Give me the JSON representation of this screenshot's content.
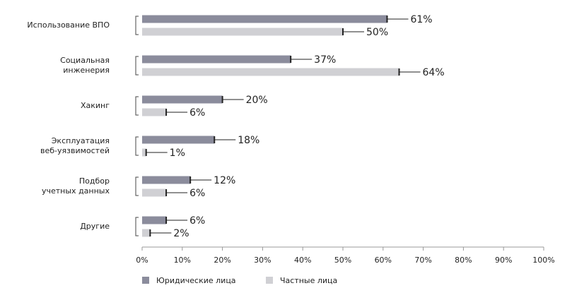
{
  "chart_data": {
    "type": "bar",
    "orientation": "horizontal",
    "categories": [
      "Использование ВПО",
      "Социальная\nинженерия",
      "Хакинг",
      "Эксплуатация\nвеб-уязвимостей",
      "Подбор\nучетных данных",
      "Другие"
    ],
    "series": [
      {
        "name": "Юридические лица",
        "color": "#8b8c9c",
        "values": [
          61,
          37,
          20,
          18,
          12,
          6
        ],
        "value_labels": [
          "61%",
          "37%",
          "20%",
          "18%",
          "12%",
          "6%"
        ]
      },
      {
        "name": "Частные лица",
        "color": "#d0d0d4",
        "values": [
          50,
          64,
          6,
          1,
          6,
          2
        ],
        "value_labels": [
          "50%",
          "64%",
          "6%",
          "1%",
          "6%",
          "2%"
        ]
      }
    ],
    "xlim": [
      0,
      100
    ],
    "xticks": [
      {
        "value": 0,
        "label": "0%"
      },
      {
        "value": 10,
        "label": "10%"
      },
      {
        "value": 20,
        "label": "20%"
      },
      {
        "value": 30,
        "label": "30%"
      },
      {
        "value": 40,
        "label": "40%"
      },
      {
        "value": 50,
        "label": "50%"
      },
      {
        "value": 60,
        "label": "60%"
      },
      {
        "value": 70,
        "label": "70%"
      },
      {
        "value": 80,
        "label": "80%"
      },
      {
        "value": 90,
        "label": "90%"
      },
      {
        "value": 100,
        "label": "100%"
      }
    ],
    "legend": "bottom-left"
  }
}
